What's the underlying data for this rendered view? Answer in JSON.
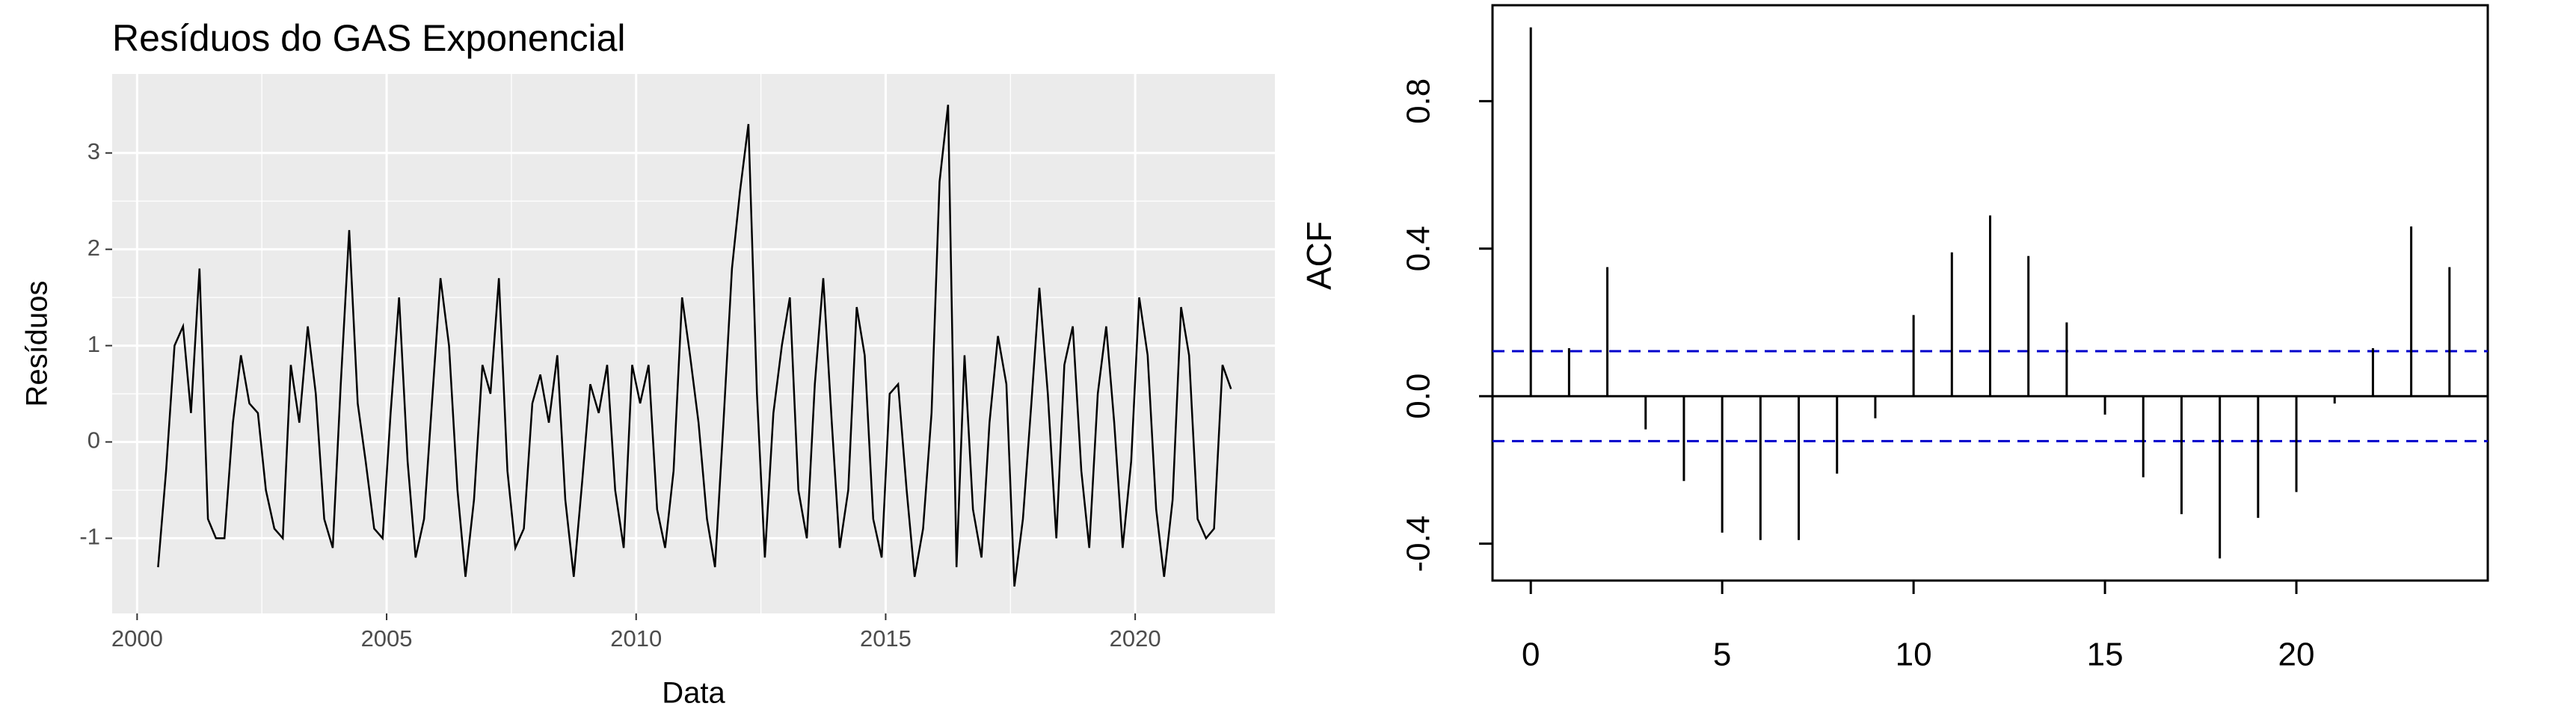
{
  "chart_data": [
    {
      "type": "line",
      "title": "Resíduos do GAS Exponencial",
      "x_label": "Data",
      "y_label": "Resíduos",
      "color": "#000000",
      "grid": true,
      "xlim": [
        1999.5,
        2022.8
      ],
      "ylim": [
        -1.78,
        3.82
      ],
      "xticks": [
        2000,
        2005,
        2010,
        2015,
        2020
      ],
      "yticks": [
        -1,
        0,
        1,
        2,
        3
      ],
      "x": [
        2000.42,
        2000.58,
        2000.75,
        2000.92,
        2001.08,
        2001.25,
        2001.42,
        2001.58,
        2001.75,
        2001.92,
        2002.08,
        2002.25,
        2002.42,
        2002.58,
        2002.75,
        2002.92,
        2003.08,
        2003.25,
        2003.42,
        2003.58,
        2003.75,
        2003.92,
        2004.08,
        2004.25,
        2004.42,
        2004.58,
        2004.75,
        2004.92,
        2005.08,
        2005.25,
        2005.42,
        2005.58,
        2005.75,
        2005.92,
        2006.08,
        2006.25,
        2006.42,
        2006.58,
        2006.75,
        2006.92,
        2007.08,
        2007.25,
        2007.42,
        2007.58,
        2007.75,
        2007.92,
        2008.08,
        2008.25,
        2008.42,
        2008.58,
        2008.75,
        2008.92,
        2009.08,
        2009.25,
        2009.42,
        2009.58,
        2009.75,
        2009.92,
        2010.08,
        2010.25,
        2010.42,
        2010.58,
        2010.75,
        2010.92,
        2011.08,
        2011.25,
        2011.42,
        2011.58,
        2011.75,
        2011.92,
        2012.08,
        2012.25,
        2012.42,
        2012.58,
        2012.75,
        2012.92,
        2013.08,
        2013.25,
        2013.42,
        2013.58,
        2013.75,
        2013.92,
        2014.08,
        2014.25,
        2014.42,
        2014.58,
        2014.75,
        2014.92,
        2015.08,
        2015.25,
        2015.42,
        2015.58,
        2015.75,
        2015.92,
        2016.08,
        2016.25,
        2016.42,
        2016.58,
        2016.75,
        2016.92,
        2017.08,
        2017.25,
        2017.42,
        2017.58,
        2017.75,
        2017.92,
        2018.08,
        2018.25,
        2018.42,
        2018.58,
        2018.75,
        2018.92,
        2019.08,
        2019.25,
        2019.42,
        2019.58,
        2019.75,
        2019.92,
        2020.08,
        2020.25,
        2020.42,
        2020.58,
        2020.75,
        2020.92,
        2021.08,
        2021.25,
        2021.42,
        2021.58,
        2021.75,
        2021.92
      ],
      "values": [
        -1.3,
        -0.3,
        1.0,
        1.2,
        0.3,
        1.8,
        -0.8,
        -1.0,
        -1.0,
        0.2,
        0.9,
        0.4,
        0.3,
        -0.5,
        -0.9,
        -1.0,
        0.8,
        0.2,
        1.2,
        0.5,
        -0.8,
        -1.1,
        0.6,
        2.2,
        0.4,
        -0.2,
        -0.9,
        -1.0,
        0.3,
        1.5,
        -0.2,
        -1.2,
        -0.8,
        0.5,
        1.7,
        1.0,
        -0.5,
        -1.4,
        -0.6,
        0.8,
        0.5,
        1.7,
        -0.3,
        -1.1,
        -0.9,
        0.4,
        0.7,
        0.2,
        0.9,
        -0.6,
        -1.4,
        -0.4,
        0.6,
        0.3,
        0.8,
        -0.5,
        -1.1,
        0.8,
        0.4,
        0.8,
        -0.7,
        -1.1,
        -0.3,
        1.5,
        0.9,
        0.2,
        -0.8,
        -1.3,
        0.2,
        1.8,
        2.6,
        3.3,
        0.5,
        -1.2,
        0.3,
        1.0,
        1.5,
        -0.5,
        -1.0,
        0.6,
        1.7,
        0.2,
        -1.1,
        -0.5,
        1.4,
        0.9,
        -0.8,
        -1.2,
        0.5,
        0.6,
        -0.5,
        -1.4,
        -0.9,
        0.3,
        2.7,
        3.5,
        -1.3,
        0.9,
        -0.7,
        -1.2,
        0.2,
        1.1,
        0.6,
        -1.5,
        -0.8,
        0.4,
        1.6,
        0.5,
        -1.0,
        0.8,
        1.2,
        -0.3,
        -1.1,
        0.5,
        1.2,
        0.2,
        -1.1,
        -0.2,
        1.5,
        0.9,
        -0.7,
        -1.4,
        -0.6,
        1.4,
        0.9,
        -0.8,
        -1.0,
        -0.9,
        0.8,
        0.55
      ]
    },
    {
      "type": "bar",
      "y_label": "ACF",
      "color": "#000000",
      "bounds_color": "#0000cc",
      "xlim": [
        -1.0,
        25.0
      ],
      "ylim": [
        -0.5,
        1.06
      ],
      "xticks": [
        0,
        5,
        10,
        15,
        20
      ],
      "yticks": [
        -0.4,
        {
          "value": 0,
          "label": "0.0"
        },
        0.4,
        0.8
      ],
      "confidence_bounds": [
        0.122,
        -0.122
      ],
      "x": [
        0,
        1,
        2,
        3,
        4,
        5,
        6,
        7,
        8,
        9,
        10,
        11,
        12,
        13,
        14,
        15,
        16,
        17,
        18,
        19,
        20,
        21,
        22,
        23,
        24
      ],
      "values": [
        1.0,
        0.13,
        0.35,
        -0.09,
        -0.23,
        -0.37,
        -0.39,
        -0.39,
        -0.21,
        -0.06,
        0.22,
        0.39,
        0.49,
        0.38,
        0.2,
        -0.05,
        -0.22,
        -0.32,
        -0.44,
        -0.33,
        -0.26,
        -0.02,
        0.13,
        0.46,
        0.35
      ]
    }
  ]
}
